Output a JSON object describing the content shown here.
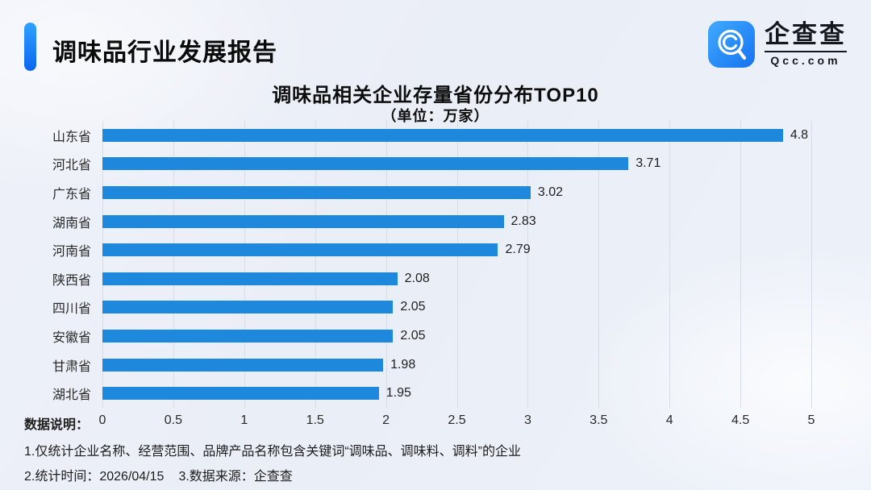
{
  "colors": {
    "bar": "#1E88DD",
    "grid": "#D7DCE6",
    "accent_top": "#2FA2FF",
    "accent_bottom": "#0B66F0",
    "logo_top": "#41AAFF",
    "logo_bottom": "#1673F0"
  },
  "header": {
    "title": "调味品行业发展报告",
    "logo": {
      "name_cn": "企查查",
      "name_en": "Qcc.com"
    }
  },
  "chart_data": {
    "type": "bar",
    "orientation": "horizontal",
    "title": "调味品相关企业存量省份分布TOP10",
    "subtitle": "（单位：万家）",
    "unit": "万家",
    "categories": [
      "山东省",
      "河北省",
      "广东省",
      "湖南省",
      "河南省",
      "陕西省",
      "四川省",
      "安徽省",
      "甘肃省",
      "湖北省"
    ],
    "values": [
      4.8,
      3.71,
      3.02,
      2.83,
      2.79,
      2.08,
      2.05,
      2.05,
      1.98,
      1.95
    ],
    "value_labels": [
      "4.8",
      "3.71",
      "3.02",
      "2.83",
      "2.79",
      "2.08",
      "2.05",
      "2.05",
      "1.98",
      "1.95"
    ],
    "xlim": [
      0,
      5
    ],
    "x_ticks": [
      "0",
      "0.5",
      "1",
      "1.5",
      "2",
      "2.5",
      "3",
      "3.5",
      "4",
      "4.5",
      "5"
    ],
    "grid": true,
    "legend": null
  },
  "footer": {
    "label": "数据说明：",
    "note1": "1.仅统计企业名称、经营范围、品牌产品名称包含关键词“调味品、调味料、调料”的企业",
    "note2": "2.统计时间：2026/04/15",
    "note3": "3.数据来源：企查查"
  }
}
